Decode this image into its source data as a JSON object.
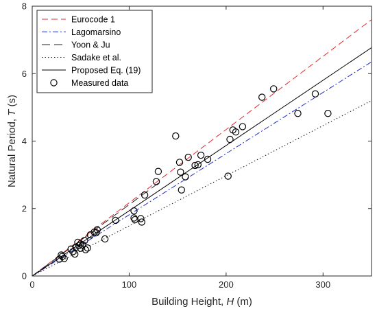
{
  "chart_data": {
    "type": "scatter",
    "title": "",
    "xlabel": "Building Height, ",
    "xlabel_symbol": "H",
    "xlabel_unit": " (m)",
    "ylabel": "Natural Period, ",
    "ylabel_symbol": "T",
    "ylabel_unit": " (s)",
    "xlim": [
      0,
      350
    ],
    "ylim": [
      0,
      8
    ],
    "xticks": [
      0,
      100,
      200,
      300
    ],
    "yticks": [
      0,
      2,
      4,
      6,
      8
    ],
    "grid": false,
    "legend_position": "top-left",
    "series": [
      {
        "name": "Eurocode 1",
        "kind": "line",
        "style": "dashed",
        "color": "#e8262a",
        "x": [
          0,
          350
        ],
        "y": [
          0,
          7.6
        ]
      },
      {
        "name": "Lagomarsino",
        "kind": "line",
        "style": "dashdot",
        "color": "#1f2bc8",
        "x": [
          0,
          350
        ],
        "y": [
          0,
          6.35
        ]
      },
      {
        "name": "Yoon & Ju",
        "kind": "line",
        "style": "longdash",
        "color": "#222222",
        "x": [
          0,
          130
        ],
        "y": [
          0,
          2.75
        ]
      },
      {
        "name": "Sadake et al.",
        "kind": "line",
        "style": "dotted",
        "color": "#111111",
        "x": [
          0,
          350
        ],
        "y": [
          0,
          5.2
        ]
      },
      {
        "name": "Proposed Eq. (19)",
        "kind": "line",
        "style": "solid",
        "color": "#000000",
        "x": [
          0,
          350
        ],
        "y": [
          0,
          6.77
        ]
      },
      {
        "name": "Measured data",
        "kind": "scatter",
        "color": "#000000",
        "points": [
          [
            28,
            0.5
          ],
          [
            30,
            0.62
          ],
          [
            31,
            0.58
          ],
          [
            33,
            0.52
          ],
          [
            40,
            0.8
          ],
          [
            42,
            0.72
          ],
          [
            44,
            0.65
          ],
          [
            45,
            0.85
          ],
          [
            47,
            1.0
          ],
          [
            48,
            0.9
          ],
          [
            50,
            0.95
          ],
          [
            50,
            0.82
          ],
          [
            52,
            0.92
          ],
          [
            54,
            1.05
          ],
          [
            55,
            0.78
          ],
          [
            57,
            0.83
          ],
          [
            60,
            1.22
          ],
          [
            64,
            1.3
          ],
          [
            66,
            1.28
          ],
          [
            67,
            1.37
          ],
          [
            75,
            1.1
          ],
          [
            86,
            1.65
          ],
          [
            105,
            1.93
          ],
          [
            105,
            1.72
          ],
          [
            106,
            1.67
          ],
          [
            112,
            1.7
          ],
          [
            113,
            1.6
          ],
          [
            116,
            2.4
          ],
          [
            128,
            2.8
          ],
          [
            130,
            3.1
          ],
          [
            148,
            4.15
          ],
          [
            152,
            3.37
          ],
          [
            153,
            3.08
          ],
          [
            154,
            2.55
          ],
          [
            158,
            2.94
          ],
          [
            161,
            3.52
          ],
          [
            168,
            3.28
          ],
          [
            171,
            3.3
          ],
          [
            174,
            3.58
          ],
          [
            181,
            3.46
          ],
          [
            202,
            2.96
          ],
          [
            204,
            4.05
          ],
          [
            207,
            4.33
          ],
          [
            210,
            4.27
          ],
          [
            217,
            4.43
          ],
          [
            237,
            5.3
          ],
          [
            249,
            5.55
          ],
          [
            274,
            4.82
          ],
          [
            292,
            5.4
          ],
          [
            305,
            4.82
          ]
        ]
      }
    ]
  }
}
